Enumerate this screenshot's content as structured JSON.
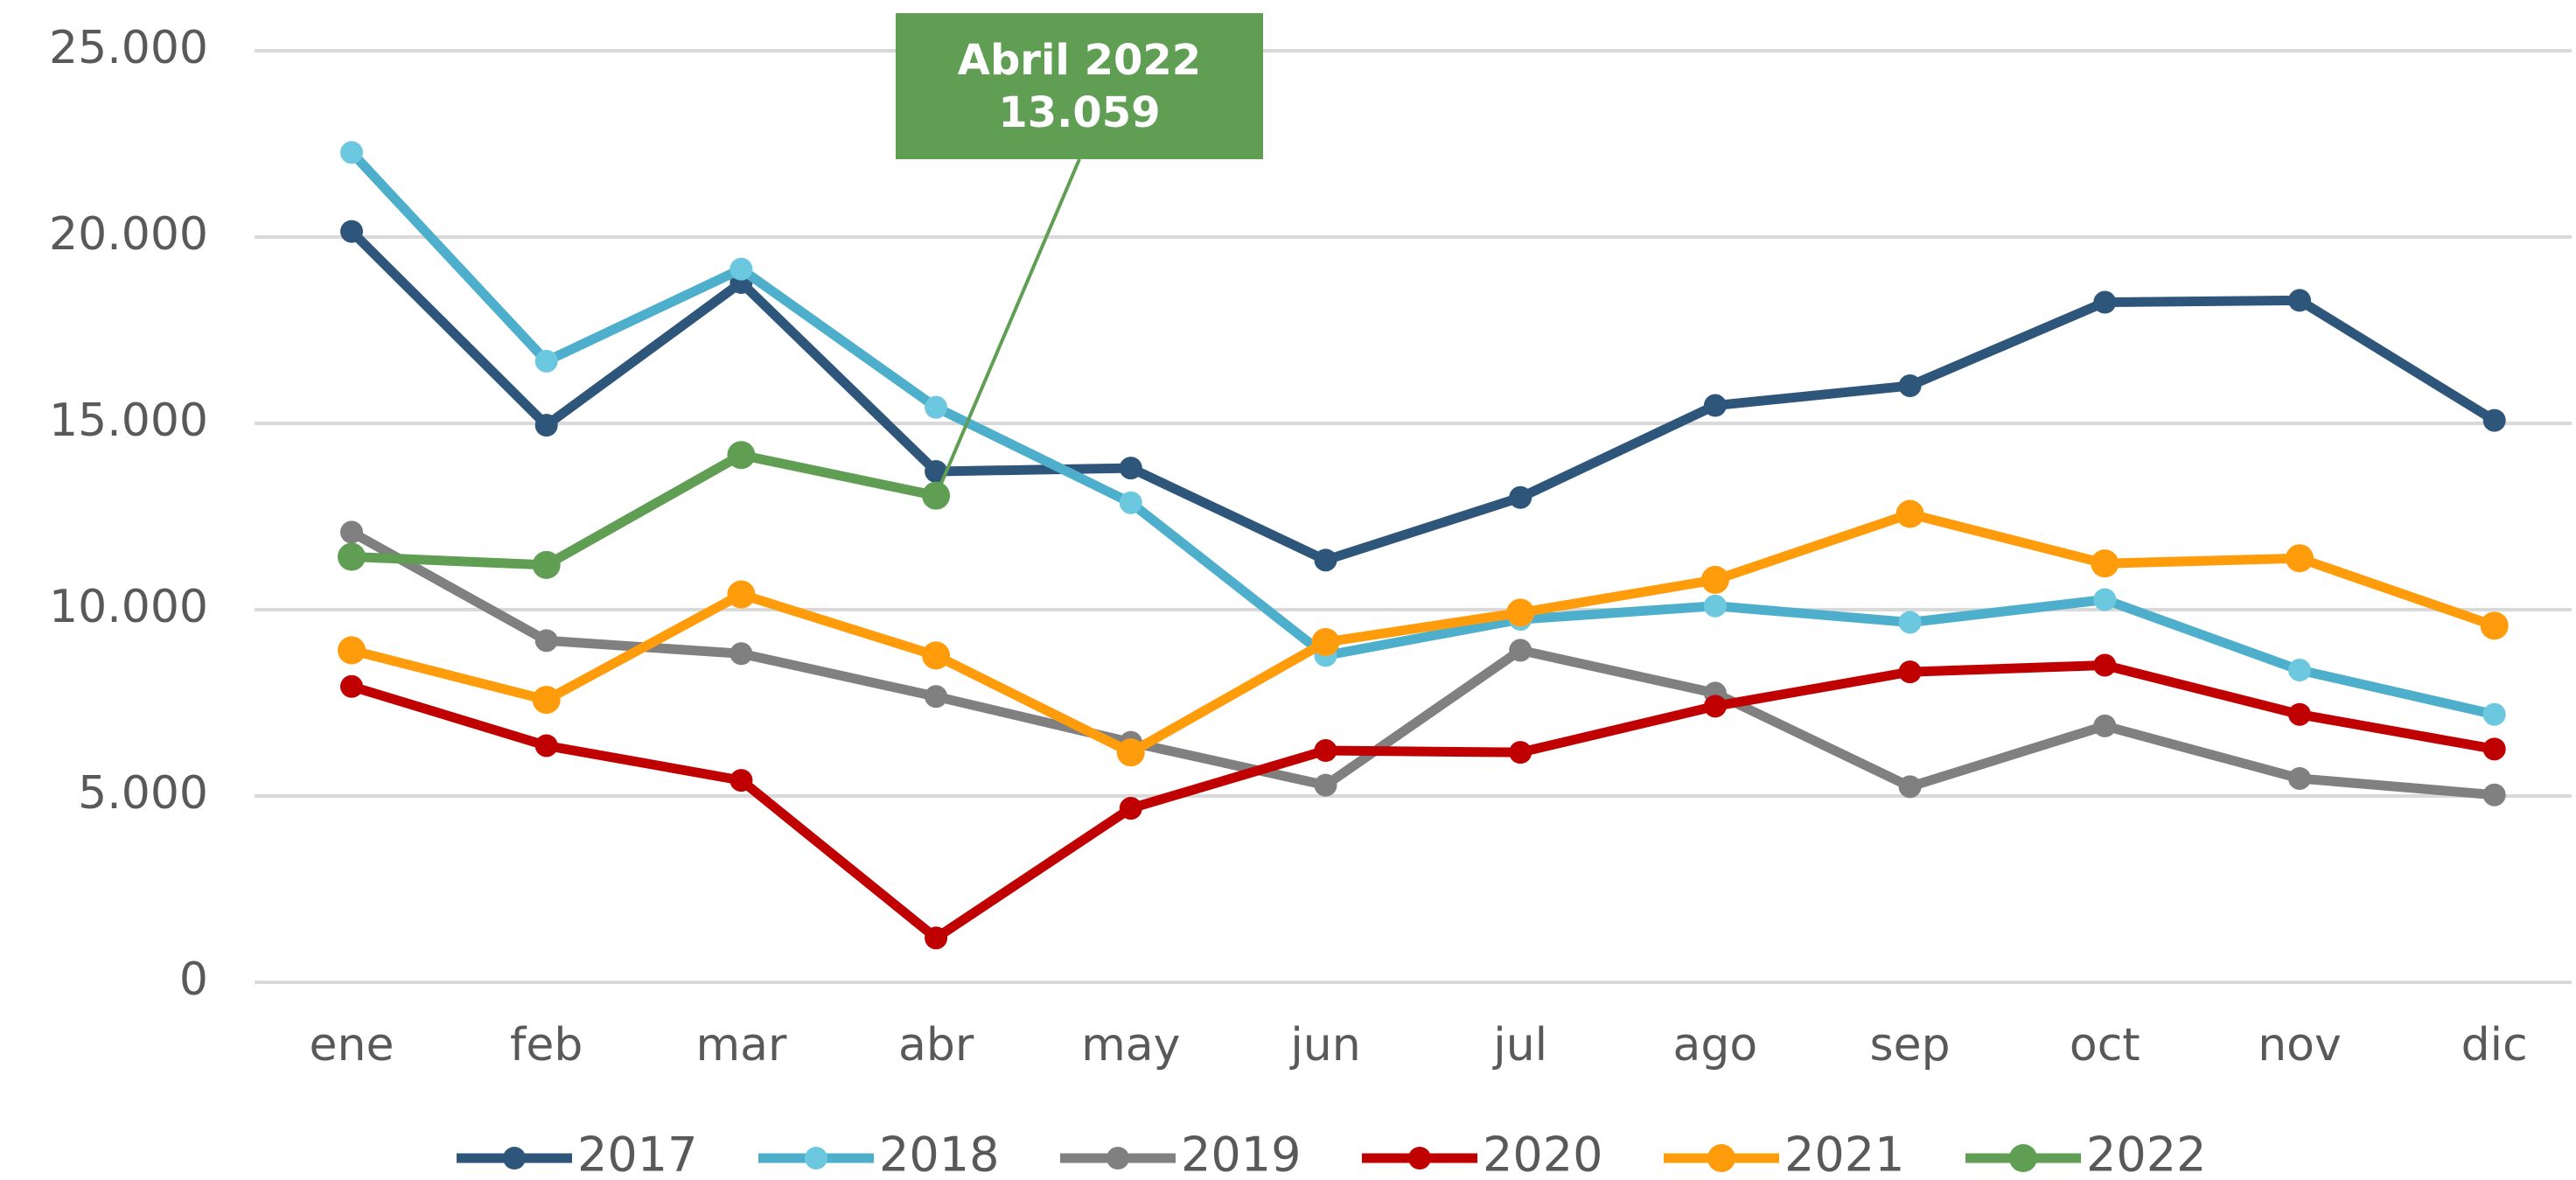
{
  "chart_data": {
    "type": "line",
    "categories": [
      "ene",
      "feb",
      "mar",
      "abr",
      "may",
      "jun",
      "jul",
      "ago",
      "sep",
      "oct",
      "nov",
      "dic"
    ],
    "series": [
      {
        "name": "2017",
        "color": "#2e567b",
        "values": [
          20150,
          14950,
          18780,
          13710,
          13800,
          11330,
          13010,
          15480,
          16010,
          18250,
          18300,
          15080
        ]
      },
      {
        "name": "2018",
        "color": "#4eafcd",
        "values": [
          22270,
          16670,
          19140,
          15430,
          12870,
          8770,
          9740,
          10100,
          9660,
          10270,
          8380,
          7190
        ]
      },
      {
        "name": "2019",
        "color": "#808080",
        "values": [
          12080,
          9170,
          8820,
          7670,
          6440,
          5290,
          8910,
          7760,
          5250,
          6880,
          5470,
          5030
        ]
      },
      {
        "name": "2020",
        "color": "#c00000",
        "values": [
          7940,
          6350,
          5420,
          1190,
          4670,
          6220,
          6170,
          7410,
          8330,
          8510,
          7190,
          6260
        ]
      },
      {
        "name": "2021",
        "color": "#ff9c0b",
        "values": [
          8910,
          7580,
          10410,
          8770,
          6170,
          9130,
          9920,
          10800,
          12570,
          11240,
          11380,
          9570
        ]
      },
      {
        "name": "2022",
        "color": "#5f9e53",
        "values": [
          11420,
          11200,
          14150,
          13059,
          null,
          null,
          null,
          null,
          null,
          null,
          null,
          null
        ]
      }
    ],
    "ylim": [
      0,
      25000
    ],
    "yticks": [
      0,
      {
        "value": 5000,
        "label": "5.000"
      },
      {
        "value": 10000,
        "label": "10.000"
      },
      {
        "value": 15000,
        "label": "15.000"
      },
      {
        "value": 20000,
        "label": "20.000"
      },
      {
        "value": 25000,
        "label": "25.000"
      }
    ],
    "grid": true,
    "legend": "bottom",
    "annotation": {
      "lines": [
        "Abril 2022",
        "13.059"
      ],
      "series": 5,
      "index": 3,
      "color": "#5f9e53"
    }
  }
}
